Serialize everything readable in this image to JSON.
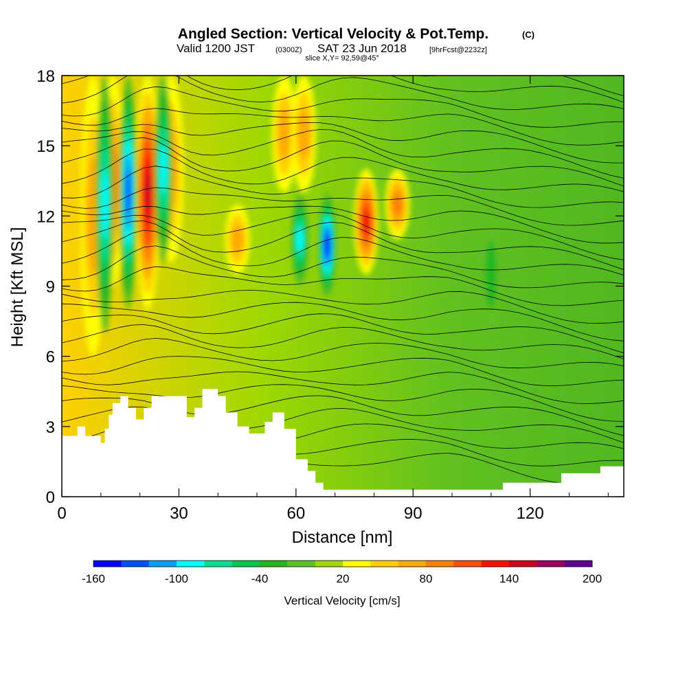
{
  "title_main": "Angled Section: Vertical Velocity & Pot.Temp.",
  "title_unit": "(C)",
  "subtitle_a": "Valid 1200 JST",
  "subtitle_b": "(0300Z)",
  "subtitle_c": "SAT 23 Jun 2018",
  "subtitle_d": "[9hrFcst@2232z]",
  "slice_label": "slice X,Y= 92,59@45°",
  "chart_data": {
    "type": "heatmap",
    "xlabel": "Distance [nm]",
    "ylabel": "Height [Kft MSL]",
    "xlim": [
      0,
      144
    ],
    "ylim": [
      0,
      18
    ],
    "xticks": [
      0,
      30,
      60,
      90,
      120
    ],
    "yticks": [
      0,
      3,
      6,
      9,
      12,
      15,
      18
    ],
    "colorbar": {
      "label": "Vertical Velocity [cm/s]",
      "min": -160,
      "max": 200,
      "step": 20,
      "tick_values": [
        -160,
        -100,
        -40,
        20,
        80,
        140,
        200
      ],
      "tick_labels": [
        "-160",
        "-100",
        "-40",
        "20",
        "80",
        "140",
        "200"
      ],
      "colors": [
        "#0000ff",
        "#0050ff",
        "#00a0ff",
        "#00ffff",
        "#00e090",
        "#00c850",
        "#20b820",
        "#60c020",
        "#a0d800",
        "#ffff00",
        "#ffd000",
        "#ffaa00",
        "#ff8000",
        "#ff5000",
        "#ff1000",
        "#d00020",
        "#a00060",
        "#600090"
      ]
    },
    "updrafts": [
      {
        "x": 8,
        "ybot": 6,
        "ytop": 18,
        "value": 60
      },
      {
        "x": 13,
        "ybot": 9,
        "ytop": 18,
        "value": 80
      },
      {
        "x": 22,
        "ybot": 8,
        "ytop": 18,
        "value": 140
      },
      {
        "x": 28,
        "ybot": 10,
        "ytop": 18,
        "value": 60
      },
      {
        "x": 45,
        "ybot": 9.5,
        "ytop": 12.5,
        "value": 60
      },
      {
        "x": 57,
        "ybot": 13,
        "ytop": 18,
        "value": 60
      },
      {
        "x": 62,
        "ybot": 13,
        "ytop": 18,
        "value": 60
      },
      {
        "x": 78,
        "ybot": 9.5,
        "ytop": 14,
        "value": 120
      },
      {
        "x": 86,
        "ybot": 11,
        "ytop": 14,
        "value": 80
      }
    ],
    "downdrafts": [
      {
        "x": 17,
        "ybot": 8,
        "ytop": 18,
        "value": -140
      },
      {
        "x": 11,
        "ybot": 7,
        "ytop": 18,
        "value": -100
      },
      {
        "x": 26,
        "ybot": 10,
        "ytop": 18,
        "value": -100
      },
      {
        "x": 61,
        "ybot": 9,
        "ytop": 13,
        "value": -100
      },
      {
        "x": 68,
        "ybot": 8.5,
        "ytop": 13,
        "value": -160
      },
      {
        "x": 110,
        "ybot": 7,
        "ytop": 12,
        "value": -40
      }
    ],
    "terrain_kft": [
      [
        0,
        2.6
      ],
      [
        4,
        2.6
      ],
      [
        4,
        3.0
      ],
      [
        6,
        3.0
      ],
      [
        6,
        2.6
      ],
      [
        10,
        2.6
      ],
      [
        10,
        2.3
      ],
      [
        11,
        2.3
      ],
      [
        11,
        2.9
      ],
      [
        12,
        2.9
      ],
      [
        12,
        3.5
      ],
      [
        13,
        3.5
      ],
      [
        13,
        4.0
      ],
      [
        15,
        4.0
      ],
      [
        15,
        4.3
      ],
      [
        17,
        4.3
      ],
      [
        17,
        3.8
      ],
      [
        19,
        3.8
      ],
      [
        19,
        3.3
      ],
      [
        21,
        3.3
      ],
      [
        21,
        3.8
      ],
      [
        23,
        3.8
      ],
      [
        23,
        4.3
      ],
      [
        32,
        4.3
      ],
      [
        32,
        3.4
      ],
      [
        34,
        3.4
      ],
      [
        34,
        3.8
      ],
      [
        36,
        3.8
      ],
      [
        36,
        4.6
      ],
      [
        40,
        4.6
      ],
      [
        40,
        4.3
      ],
      [
        42,
        4.3
      ],
      [
        42,
        3.6
      ],
      [
        45,
        3.6
      ],
      [
        45,
        3.0
      ],
      [
        48,
        3.0
      ],
      [
        48,
        2.7
      ],
      [
        52,
        2.7
      ],
      [
        52,
        3.2
      ],
      [
        54,
        3.2
      ],
      [
        54,
        3.6
      ],
      [
        57,
        3.6
      ],
      [
        57,
        2.9
      ],
      [
        60,
        2.9
      ],
      [
        60,
        1.6
      ],
      [
        63,
        1.6
      ],
      [
        63,
        1.1
      ],
      [
        65,
        1.1
      ],
      [
        65,
        0.6
      ],
      [
        67,
        0.6
      ],
      [
        67,
        0.3
      ],
      [
        113,
        0.3
      ],
      [
        113,
        0.6
      ],
      [
        128,
        0.6
      ],
      [
        128,
        1.0
      ],
      [
        138,
        1.0
      ],
      [
        138,
        1.3
      ],
      [
        144,
        1.3
      ]
    ]
  }
}
